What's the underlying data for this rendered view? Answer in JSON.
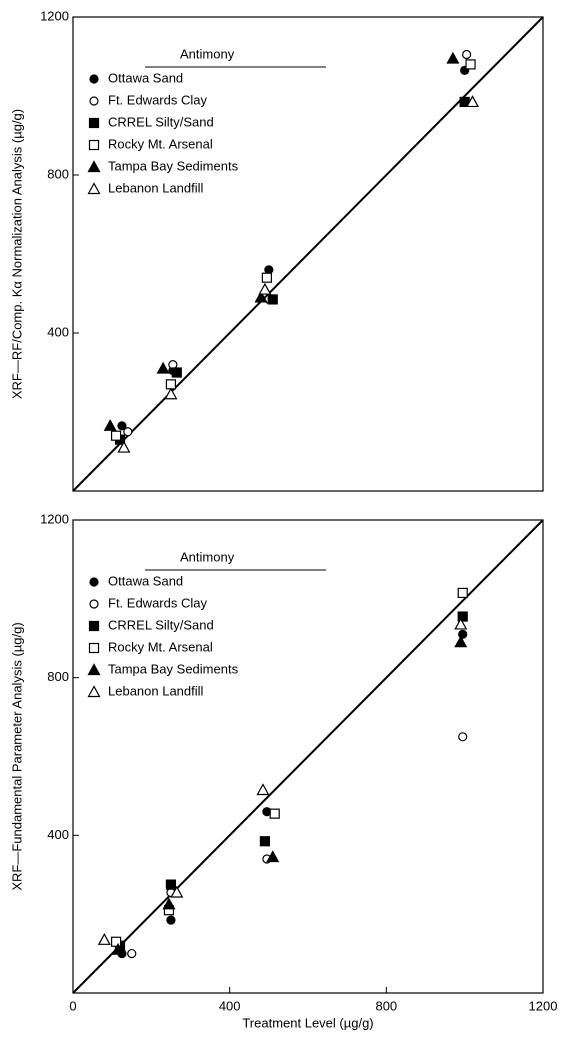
{
  "chart_data": [
    {
      "type": "scatter",
      "ylabel": "XRF—RF/Comp. Kα Normalization Analysis (µg/g)",
      "legend_title": "Antimony",
      "legend": "upper left",
      "xlim": [
        0,
        1200
      ],
      "ylim": [
        0,
        1200
      ],
      "yticks": [
        400,
        800,
        1200
      ],
      "series": [
        {
          "name": "Ottawa Sand",
          "marker": "circle-filled",
          "color": "#000",
          "x": [
            125,
            255,
            500,
            1000
          ],
          "values": [
            165,
            305,
            560,
            1065
          ]
        },
        {
          "name": "Ft. Edwards Clay",
          "marker": "circle-open",
          "color": "#000",
          "x": [
            140,
            255,
            500,
            1005
          ],
          "values": [
            150,
            320,
            485,
            1105
          ]
        },
        {
          "name": "CRREL Silty/Sand",
          "marker": "square-filled",
          "color": "#000",
          "x": [
            120,
            265,
            510,
            1000
          ],
          "values": [
            130,
            300,
            485,
            985
          ]
        },
        {
          "name": "Rocky Mt. Arsenal",
          "marker": "square-open",
          "color": "#000",
          "x": [
            110,
            250,
            495,
            1015
          ],
          "values": [
            140,
            270,
            540,
            1080
          ]
        },
        {
          "name": "Tampa Bay Sediments",
          "marker": "triangle-filled",
          "color": "#000",
          "x": [
            95,
            230,
            480,
            970
          ],
          "values": [
            165,
            310,
            490,
            1095
          ]
        },
        {
          "name": "Lebanon Landfill",
          "marker": "triangle-open",
          "color": "#000",
          "x": [
            130,
            250,
            490,
            1020
          ],
          "values": [
            110,
            245,
            510,
            985
          ]
        }
      ]
    },
    {
      "type": "scatter",
      "ylabel": "XRF—Fundamental Parameter Analysis (µg/g)",
      "xlabel": "Treatment Level (µg/g)",
      "legend_title": "Antimony",
      "legend": "upper left",
      "xlim": [
        0,
        1200
      ],
      "ylim": [
        0,
        1200
      ],
      "xticks": [
        0,
        400,
        800,
        1200
      ],
      "yticks": [
        400,
        800,
        1200
      ],
      "series": [
        {
          "name": "Ottawa Sand",
          "marker": "circle-filled",
          "color": "#000",
          "x": [
            125,
            250,
            495,
            995
          ],
          "values": [
            100,
            185,
            460,
            910
          ]
        },
        {
          "name": "Ft. Edwards Clay",
          "marker": "circle-open",
          "color": "#000",
          "x": [
            150,
            250,
            495,
            995
          ],
          "values": [
            100,
            255,
            340,
            650
          ]
        },
        {
          "name": "CRREL Silty/Sand",
          "marker": "square-filled",
          "color": "#000",
          "x": [
            120,
            250,
            490,
            995
          ],
          "values": [
            120,
            275,
            385,
            955
          ]
        },
        {
          "name": "Rocky Mt. Arsenal",
          "marker": "square-open",
          "color": "#000",
          "x": [
            110,
            245,
            515,
            995
          ],
          "values": [
            130,
            210,
            455,
            1015
          ]
        },
        {
          "name": "Tampa Bay Sediments",
          "marker": "triangle-filled",
          "color": "#000",
          "x": [
            115,
            245,
            510,
            990
          ],
          "values": [
            110,
            225,
            345,
            890
          ]
        },
        {
          "name": "Lebanon Landfill",
          "marker": "triangle-open",
          "color": "#000",
          "x": [
            80,
            265,
            485,
            990
          ],
          "values": [
            135,
            255,
            515,
            935
          ]
        }
      ]
    }
  ]
}
